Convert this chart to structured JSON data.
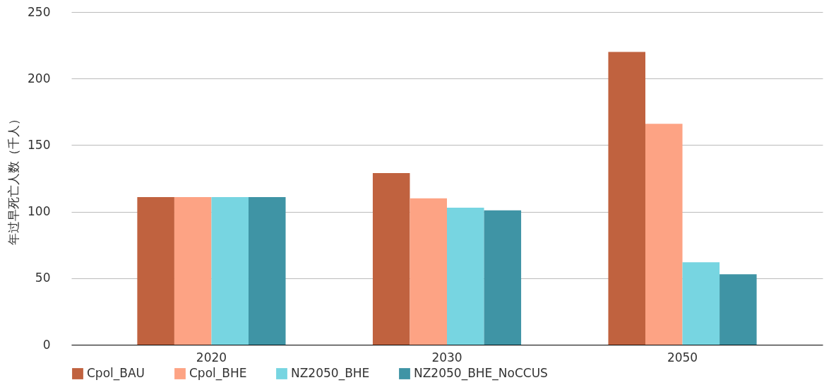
{
  "chart_data": {
    "type": "bar",
    "ylabel": "年过早死亡人数（千人）",
    "categories": [
      "2020",
      "2030",
      "2050"
    ],
    "series": [
      {
        "name": "Cpol_BAU",
        "color": "#c0623f",
        "values": [
          111,
          129,
          220
        ]
      },
      {
        "name": "Cpol_BHE",
        "color": "#fda384",
        "values": [
          111,
          110,
          166
        ]
      },
      {
        "name": "NZ2050_BHE",
        "color": "#77d5e1",
        "values": [
          111,
          103,
          62
        ]
      },
      {
        "name": "NZ2050_BHE_NoCCUS",
        "color": "#3f94a5",
        "values": [
          111,
          101,
          53
        ]
      }
    ],
    "ylim": [
      0,
      250
    ],
    "yticks": [
      0,
      50,
      100,
      150,
      200,
      250
    ],
    "grid": "y",
    "legend": "bottom"
  }
}
